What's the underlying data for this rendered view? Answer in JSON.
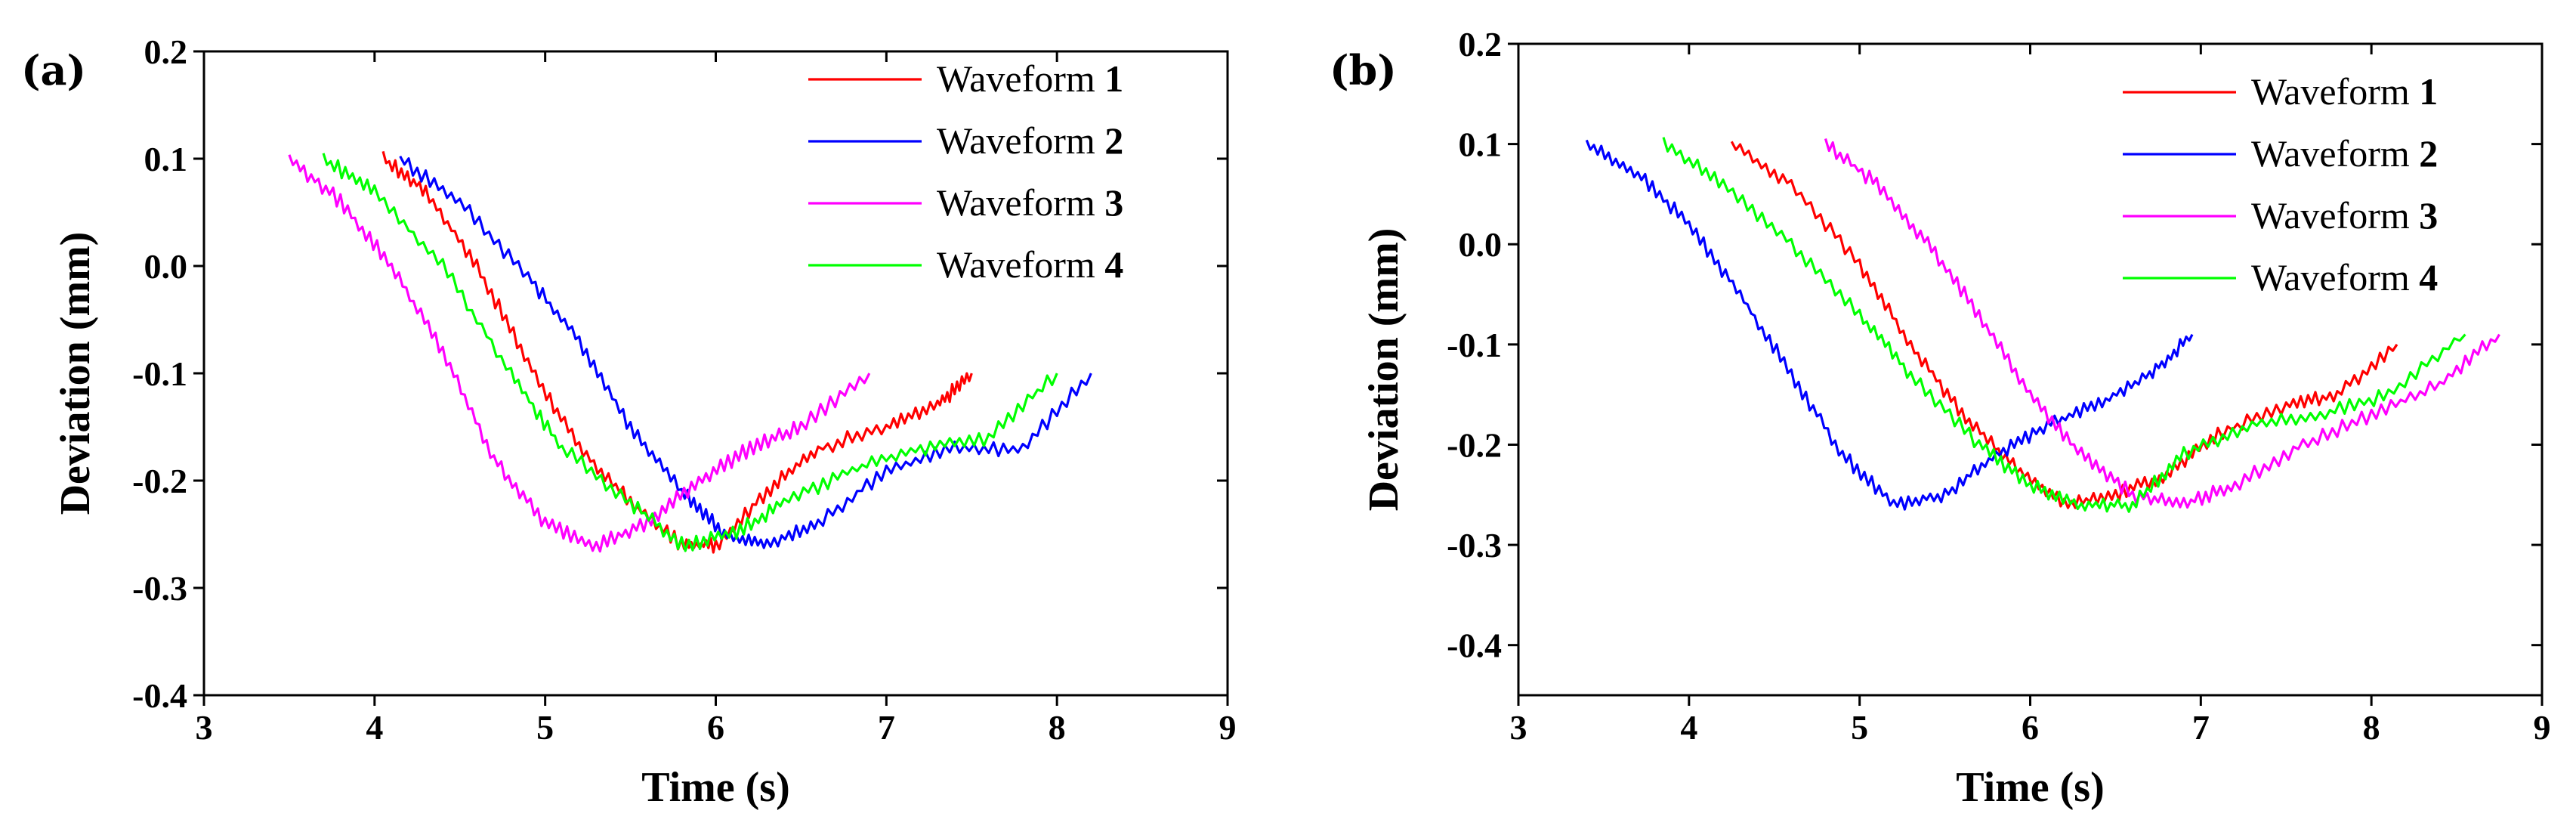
{
  "chart_data": [
    {
      "type": "line",
      "panel_label": "(a)",
      "xlabel": "Time (s)",
      "ylabel": "Deviation  (mm)",
      "xlim": [
        3,
        9
      ],
      "ylim": [
        -0.4,
        0.2
      ],
      "xticks": [
        3,
        4,
        5,
        6,
        7,
        8,
        9
      ],
      "yticks": [
        0.2,
        0.1,
        0.0,
        -0.1,
        -0.2,
        -0.3,
        -0.4
      ],
      "ytick_labels": [
        "0.2",
        "0.1",
        "0.0",
        "-0.1",
        "-0.2",
        "-0.3",
        "-0.4"
      ],
      "legend_position": "top-right",
      "series": [
        {
          "name": "Waveform",
          "number": "1",
          "color": "#ff0000",
          "x": [
            4.05,
            4.3,
            4.6,
            4.9,
            5.2,
            5.5,
            5.8,
            6.0,
            6.3,
            6.6,
            7.0,
            7.3,
            7.5
          ],
          "y": [
            0.1,
            0.07,
            0.0,
            -0.09,
            -0.17,
            -0.22,
            -0.26,
            -0.26,
            -0.21,
            -0.17,
            -0.15,
            -0.13,
            -0.1
          ]
        },
        {
          "name": "Waveform",
          "number": "2",
          "color": "#0000ff",
          "x": [
            4.15,
            4.5,
            4.9,
            5.2,
            5.5,
            5.8,
            6.05,
            6.3,
            6.6,
            7.0,
            7.4,
            7.8,
            8.2
          ],
          "y": [
            0.1,
            0.06,
            -0.01,
            -0.07,
            -0.15,
            -0.21,
            -0.25,
            -0.26,
            -0.24,
            -0.19,
            -0.17,
            -0.17,
            -0.1
          ]
        },
        {
          "name": "Waveform",
          "number": "3",
          "color": "#ff00ff",
          "x": [
            3.5,
            3.8,
            4.1,
            4.4,
            4.7,
            5.0,
            5.3,
            5.6,
            5.9,
            6.2,
            6.5,
            6.9
          ],
          "y": [
            0.1,
            0.06,
            0.0,
            -0.08,
            -0.18,
            -0.24,
            -0.26,
            -0.24,
            -0.2,
            -0.17,
            -0.15,
            -0.1
          ]
        },
        {
          "name": "Waveform",
          "number": "4",
          "color": "#00ff00",
          "x": [
            3.7,
            4.0,
            4.4,
            4.8,
            5.1,
            5.5,
            5.8,
            6.1,
            6.4,
            6.8,
            7.2,
            7.6,
            8.0
          ],
          "y": [
            0.1,
            0.07,
            0.0,
            -0.1,
            -0.17,
            -0.22,
            -0.26,
            -0.25,
            -0.22,
            -0.19,
            -0.17,
            -0.16,
            -0.1
          ]
        }
      ]
    },
    {
      "type": "line",
      "panel_label": "(b)",
      "xlabel": "Time (s)",
      "ylabel": "Deviation  (mm)",
      "xlim": [
        3,
        9
      ],
      "ylim": [
        -0.45,
        0.2
      ],
      "xticks": [
        3,
        4,
        5,
        6,
        7,
        8,
        9
      ],
      "yticks": [
        0.2,
        0.1,
        0.0,
        -0.1,
        -0.2,
        -0.3,
        -0.4
      ],
      "ytick_labels": [
        "0.2",
        "0.1",
        "0.0",
        "-0.1",
        "-0.2",
        "-0.3",
        "-0.4"
      ],
      "legend_position": "top-right",
      "series": [
        {
          "name": "Waveform",
          "number": "1",
          "color": "#ff0000",
          "x": [
            4.25,
            4.6,
            5.0,
            5.3,
            5.6,
            5.9,
            6.2,
            6.5,
            6.8,
            7.1,
            7.5,
            7.8,
            8.15
          ],
          "y": [
            0.1,
            0.06,
            -0.02,
            -0.1,
            -0.17,
            -0.22,
            -0.26,
            -0.25,
            -0.23,
            -0.19,
            -0.16,
            -0.15,
            -0.1
          ]
        },
        {
          "name": "Waveform",
          "number": "2",
          "color": "#0000ff",
          "x": [
            3.4,
            3.7,
            4.0,
            4.3,
            4.6,
            4.9,
            5.2,
            5.5,
            5.8,
            6.1,
            6.4,
            6.7,
            6.95
          ],
          "y": [
            0.1,
            0.07,
            0.02,
            -0.05,
            -0.13,
            -0.21,
            -0.26,
            -0.25,
            -0.21,
            -0.18,
            -0.16,
            -0.13,
            -0.09
          ]
        },
        {
          "name": "Waveform",
          "number": "3",
          "color": "#ff00ff",
          "x": [
            4.8,
            5.1,
            5.4,
            5.7,
            6.0,
            6.3,
            6.6,
            6.9,
            7.2,
            7.6,
            8.0,
            8.4,
            8.75
          ],
          "y": [
            0.1,
            0.06,
            0.0,
            -0.07,
            -0.15,
            -0.21,
            -0.25,
            -0.26,
            -0.24,
            -0.2,
            -0.17,
            -0.14,
            -0.09
          ]
        },
        {
          "name": "Waveform",
          "number": "4",
          "color": "#00ff00",
          "x": [
            3.85,
            4.2,
            4.6,
            5.0,
            5.3,
            5.7,
            6.0,
            6.3,
            6.6,
            6.9,
            7.3,
            7.7,
            8.1,
            8.55
          ],
          "y": [
            0.1,
            0.06,
            0.0,
            -0.07,
            -0.13,
            -0.2,
            -0.24,
            -0.26,
            -0.26,
            -0.21,
            -0.18,
            -0.17,
            -0.15,
            -0.09
          ]
        }
      ]
    }
  ]
}
